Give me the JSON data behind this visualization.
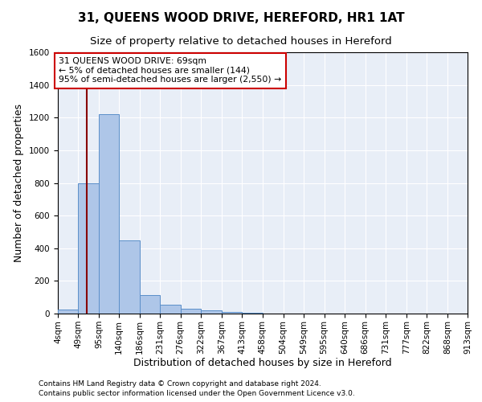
{
  "title": "31, QUEENS WOOD DRIVE, HEREFORD, HR1 1AT",
  "subtitle": "Size of property relative to detached houses in Hereford",
  "xlabel": "Distribution of detached houses by size in Hereford",
  "ylabel": "Number of detached properties",
  "footnote1": "Contains HM Land Registry data © Crown copyright and database right 2024.",
  "footnote2": "Contains public sector information licensed under the Open Government Licence v3.0.",
  "bin_edges": [
    4,
    49,
    95,
    140,
    186,
    231,
    276,
    322,
    367,
    413,
    458,
    504,
    549,
    595,
    640,
    686,
    731,
    777,
    822,
    868,
    913
  ],
  "bar_heights": [
    25,
    800,
    1220,
    450,
    115,
    55,
    28,
    18,
    12,
    5,
    0,
    0,
    0,
    0,
    0,
    0,
    0,
    0,
    0,
    0
  ],
  "bar_color": "#aec6e8",
  "bar_edge_color": "#5b8fc9",
  "property_size": 69,
  "vline_color": "#880000",
  "annotation_line1": "31 QUEENS WOOD DRIVE: 69sqm",
  "annotation_line2": "← 5% of detached houses are smaller (144)",
  "annotation_line3": "95% of semi-detached houses are larger (2,550) →",
  "annotation_box_color": "#cc0000",
  "ylim": [
    0,
    1600
  ],
  "yticks": [
    0,
    200,
    400,
    600,
    800,
    1000,
    1200,
    1400,
    1600
  ],
  "background_color": "#e8eef7",
  "grid_color": "#d0d8e8",
  "title_fontsize": 11,
  "subtitle_fontsize": 9.5,
  "axis_label_fontsize": 9,
  "tick_fontsize": 7.5,
  "footnote_fontsize": 6.5
}
